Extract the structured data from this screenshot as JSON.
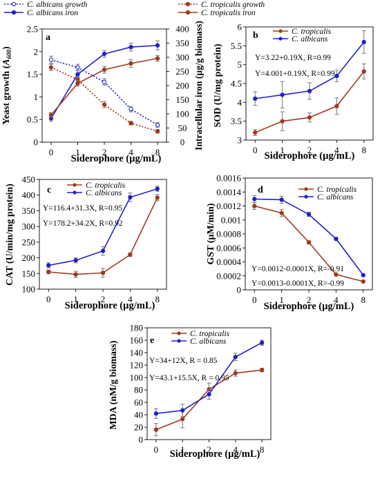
{
  "chart_data": [
    {
      "panel": "a",
      "type": "line",
      "x_ticks": [
        "0",
        "1",
        "2",
        "4",
        "8"
      ],
      "xlabel": "Siderophore (µg/mL)",
      "ylabel": "Yeast growth (A₆₀₀)",
      "ylabel_right": "Intracellular iron (µg/g biomass)",
      "ylim": [
        0,
        2.5
      ],
      "y_ticks": [
        "0",
        "0.5",
        "1",
        "1.5",
        "2",
        "2.5"
      ],
      "ylim_right": [
        0,
        400
      ],
      "y_ticks_right": [
        "0",
        "50",
        "100",
        "150",
        "200",
        "250",
        "300",
        "350",
        "400"
      ],
      "legend": [
        {
          "italic": "C. albicans",
          "rest": " growth"
        },
        {
          "italic": "C. tropicalis",
          "rest": " growth"
        },
        {
          "italic": "C. albicans",
          "rest": " iron"
        },
        {
          "italic": "C. tropicalis",
          "rest": " iron"
        }
      ],
      "series": [
        {
          "name": "C. albicans growth",
          "axis": "left",
          "color": "#1f1fcf",
          "dashed": true,
          "marker": "open",
          "values": [
            1.82,
            1.65,
            1.33,
            0.73,
            0.38
          ],
          "errors": [
            0.08,
            0.07,
            0.07,
            0.06,
            0.05
          ]
        },
        {
          "name": "C. tropicalis growth",
          "axis": "left",
          "color": "#a0381c",
          "dashed": true,
          "marker": "filled",
          "values": [
            1.65,
            1.38,
            0.83,
            0.42,
            0.24
          ],
          "errors": [
            0.07,
            0.06,
            0.07,
            0.04,
            0.04
          ]
        },
        {
          "name": "C. albicans iron",
          "axis": "right",
          "color": "#1f1fcf",
          "dashed": false,
          "marker": "filled",
          "values": [
            84,
            240,
            312,
            336,
            342
          ],
          "errors": [
            10,
            12,
            12,
            14,
            16
          ]
        },
        {
          "name": "C. tropicalis iron",
          "axis": "right",
          "color": "#a0381c",
          "dashed": false,
          "marker": "filled",
          "values": [
            96,
            208,
            256,
            278,
            296
          ],
          "errors": [
            8,
            10,
            12,
            14,
            10
          ]
        }
      ]
    },
    {
      "panel": "b",
      "type": "line",
      "x_ticks": [
        "0",
        "1",
        "2",
        "4",
        "8"
      ],
      "xlabel": "Siderophore (µg/mL)",
      "ylabel": "SOD (U/mg protein)",
      "ylim": [
        3,
        6
      ],
      "y_ticks": [
        "3",
        "3.5",
        "4",
        "4.5",
        "5",
        "5.5",
        "6"
      ],
      "equations": [
        {
          "text": "Y=3.22+0.19X, R=0.99",
          "color": "#c0392b"
        },
        {
          "text": "Y=4.001+0.19X, R=0.99",
          "color": "#1f1fcf"
        }
      ],
      "series": [
        {
          "name": "C. tropicalis",
          "color": "#a0381c",
          "values": [
            3.2,
            3.5,
            3.6,
            3.9,
            4.82
          ],
          "errors": [
            0.08,
            0.25,
            0.12,
            0.22,
            0.2
          ]
        },
        {
          "name": "C. albicans",
          "color": "#1f1fcf",
          "values": [
            4.1,
            4.2,
            4.3,
            4.7,
            5.6
          ],
          "errors": [
            0.18,
            0.35,
            0.22,
            0.15,
            0.3
          ]
        }
      ]
    },
    {
      "panel": "c",
      "type": "line",
      "x_ticks": [
        "0",
        "1",
        "2",
        "4",
        "8"
      ],
      "xlabel": "Siderophore (µg/mL)",
      "ylabel": "CAT (U/min/mg protein)",
      "ylim": [
        100,
        450
      ],
      "y_ticks": [
        "100",
        "150",
        "200",
        "250",
        "300",
        "350",
        "400",
        "450"
      ],
      "equations": [
        {
          "text": "Y=116.4+31.3X, R=0.95",
          "color": "#c0392b"
        },
        {
          "text": "Y=178.2+34.2X, R=0.92",
          "color": "#1f1fcf"
        }
      ],
      "series": [
        {
          "name": "C. tropicalis",
          "color": "#a0381c",
          "values": [
            155,
            147,
            152,
            210,
            392
          ],
          "errors": [
            6,
            10,
            14,
            6,
            10
          ]
        },
        {
          "name": "C. albicans",
          "color": "#1f1fcf",
          "values": [
            176,
            192,
            222,
            393,
            420
          ],
          "errors": [
            8,
            8,
            14,
            14,
            8
          ]
        }
      ]
    },
    {
      "panel": "d",
      "type": "line",
      "x_ticks": [
        "0",
        "1",
        "2",
        "4",
        "8"
      ],
      "xlabel": "Siderophore (µg/mL)",
      "ylabel": "GST (µM/min)",
      "ylim": [
        0,
        0.0016
      ],
      "y_ticks": [
        "0",
        "0.0002",
        "0.0004",
        "0.0006",
        "0.0008",
        "0.001",
        "0.0012",
        "0.0014",
        "0.0016"
      ],
      "equations": [
        {
          "text": "Y=0.0012-0.0001X, R=-0.91",
          "color": "#c0392b"
        },
        {
          "text": "Y=0.0013-0.0001X, R=-0.99",
          "color": "#1f1fcf"
        }
      ],
      "series": [
        {
          "name": "C. tropicalis",
          "color": "#a0381c",
          "values": [
            0.0012,
            0.0011,
            0.00068,
            0.00022,
            0.00012
          ],
          "errors": [
            5e-05,
            5e-05,
            2e-05,
            1e-05,
            1e-05
          ]
        },
        {
          "name": "C. albicans",
          "color": "#1f1fcf",
          "values": [
            0.0013,
            0.00129,
            0.00108,
            0.00073,
            0.00021
          ],
          "errors": [
            5e-05,
            5e-05,
            3e-05,
            2e-05,
            1e-05
          ]
        }
      ]
    },
    {
      "panel": "e",
      "type": "line",
      "x_ticks": [
        "0",
        "1",
        "2",
        "4",
        "8"
      ],
      "xlabel": "Siderophore (µg/mL)",
      "ylabel": "MDA (nM/g biomass)",
      "ylim": [
        0,
        180
      ],
      "y_ticks": [
        "0",
        "20",
        "40",
        "60",
        "80",
        "100",
        "120",
        "140",
        "160",
        "180"
      ],
      "equations": [
        {
          "text": "Y=34+12X, R = 0.85",
          "color": "#c0392b"
        },
        {
          "text": "Y=43.1+15.5X, R = 0.95",
          "color": "#1f1fcf"
        }
      ],
      "series": [
        {
          "name": "C. tropicalis",
          "color": "#a0381c",
          "values": [
            16,
            33,
            81,
            107,
            112
          ],
          "errors": [
            10,
            14,
            10,
            5,
            3
          ]
        },
        {
          "name": "C. albicans",
          "color": "#1f1fcf",
          "values": [
            42,
            47,
            73,
            133,
            156
          ],
          "errors": [
            8,
            10,
            8,
            6,
            4
          ]
        }
      ]
    }
  ]
}
